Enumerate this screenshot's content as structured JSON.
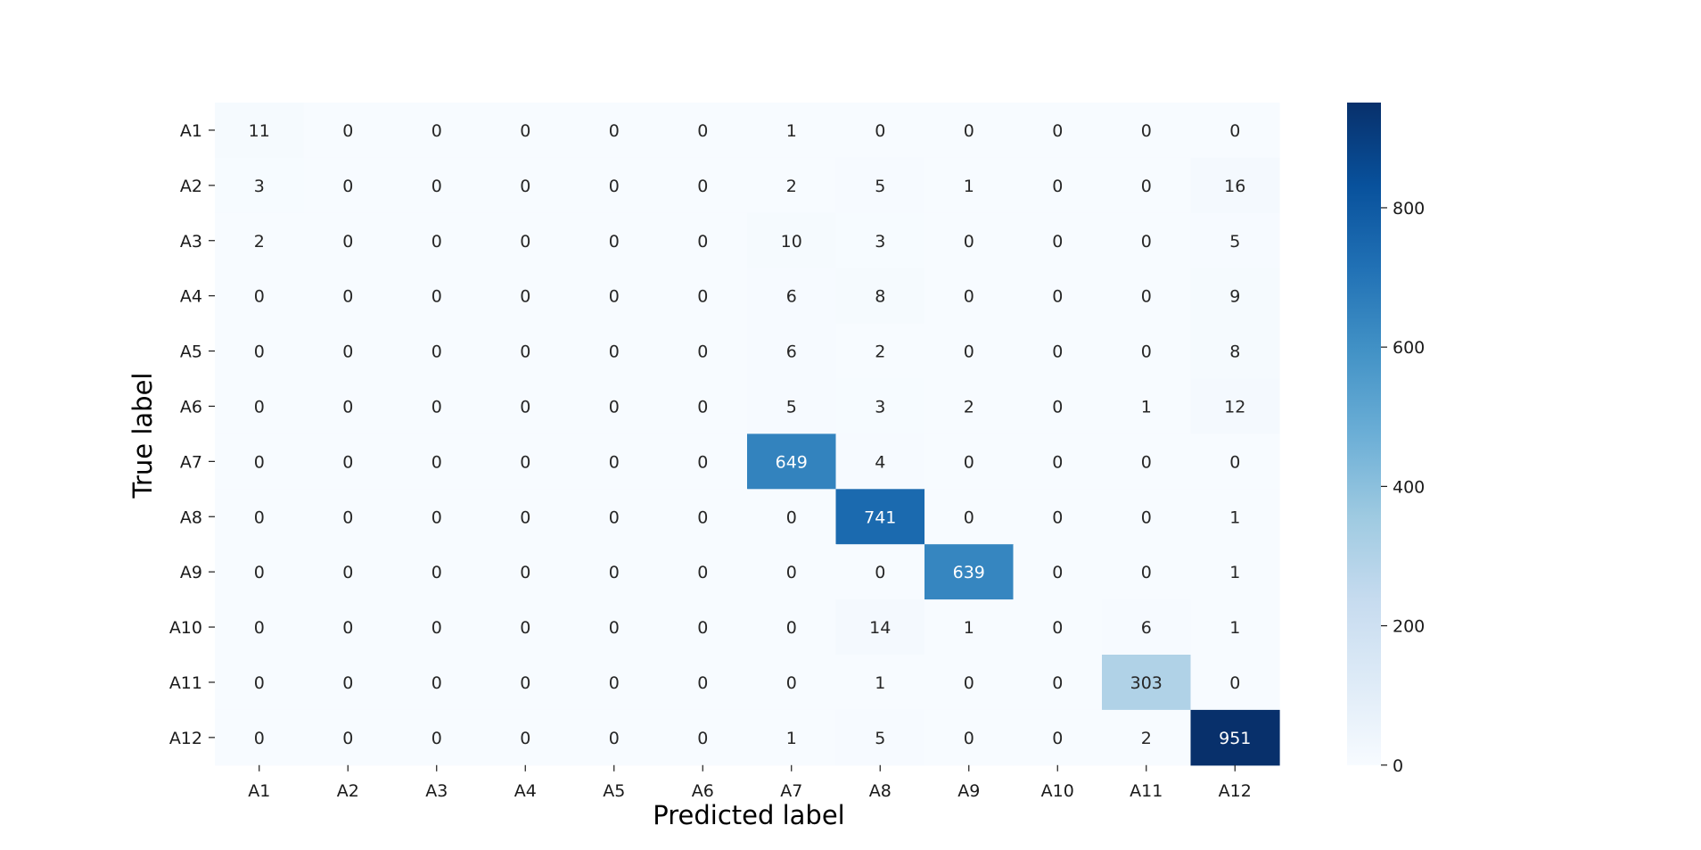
{
  "chart_data": {
    "type": "heatmap",
    "title": "",
    "xlabel": "Predicted label",
    "ylabel": "True label",
    "x_categories": [
      "A1",
      "A2",
      "A3",
      "A4",
      "A5",
      "A6",
      "A7",
      "A8",
      "A9",
      "A10",
      "A11",
      "A12"
    ],
    "y_categories": [
      "A1",
      "A2",
      "A3",
      "A4",
      "A5",
      "A6",
      "A7",
      "A8",
      "A9",
      "A10",
      "A11",
      "A12"
    ],
    "matrix": [
      [
        11,
        0,
        0,
        0,
        0,
        0,
        1,
        0,
        0,
        0,
        0,
        0
      ],
      [
        3,
        0,
        0,
        0,
        0,
        0,
        2,
        5,
        1,
        0,
        0,
        16
      ],
      [
        2,
        0,
        0,
        0,
        0,
        0,
        10,
        3,
        0,
        0,
        0,
        5
      ],
      [
        0,
        0,
        0,
        0,
        0,
        0,
        6,
        8,
        0,
        0,
        0,
        9
      ],
      [
        0,
        0,
        0,
        0,
        0,
        0,
        6,
        2,
        0,
        0,
        0,
        8
      ],
      [
        0,
        0,
        0,
        0,
        0,
        0,
        5,
        3,
        2,
        0,
        1,
        12
      ],
      [
        0,
        0,
        0,
        0,
        0,
        0,
        649,
        4,
        0,
        0,
        0,
        0
      ],
      [
        0,
        0,
        0,
        0,
        0,
        0,
        0,
        741,
        0,
        0,
        0,
        1
      ],
      [
        0,
        0,
        0,
        0,
        0,
        0,
        0,
        0,
        639,
        0,
        0,
        1
      ],
      [
        0,
        0,
        0,
        0,
        0,
        0,
        0,
        14,
        1,
        0,
        6,
        1
      ],
      [
        0,
        0,
        0,
        0,
        0,
        0,
        0,
        1,
        0,
        0,
        303,
        0
      ],
      [
        0,
        0,
        0,
        0,
        0,
        0,
        1,
        5,
        0,
        0,
        2,
        951
      ]
    ],
    "colormap": "Blues",
    "colors": {
      "low": "#f7fbff",
      "high": "#08306b",
      "text_dark": "#262626",
      "text_light": "#ffffff"
    },
    "colorbar": {
      "range": [
        0,
        951
      ],
      "ticks": [
        0,
        200,
        400,
        600,
        800
      ]
    },
    "grid": false,
    "legend": "colorbar-right"
  }
}
